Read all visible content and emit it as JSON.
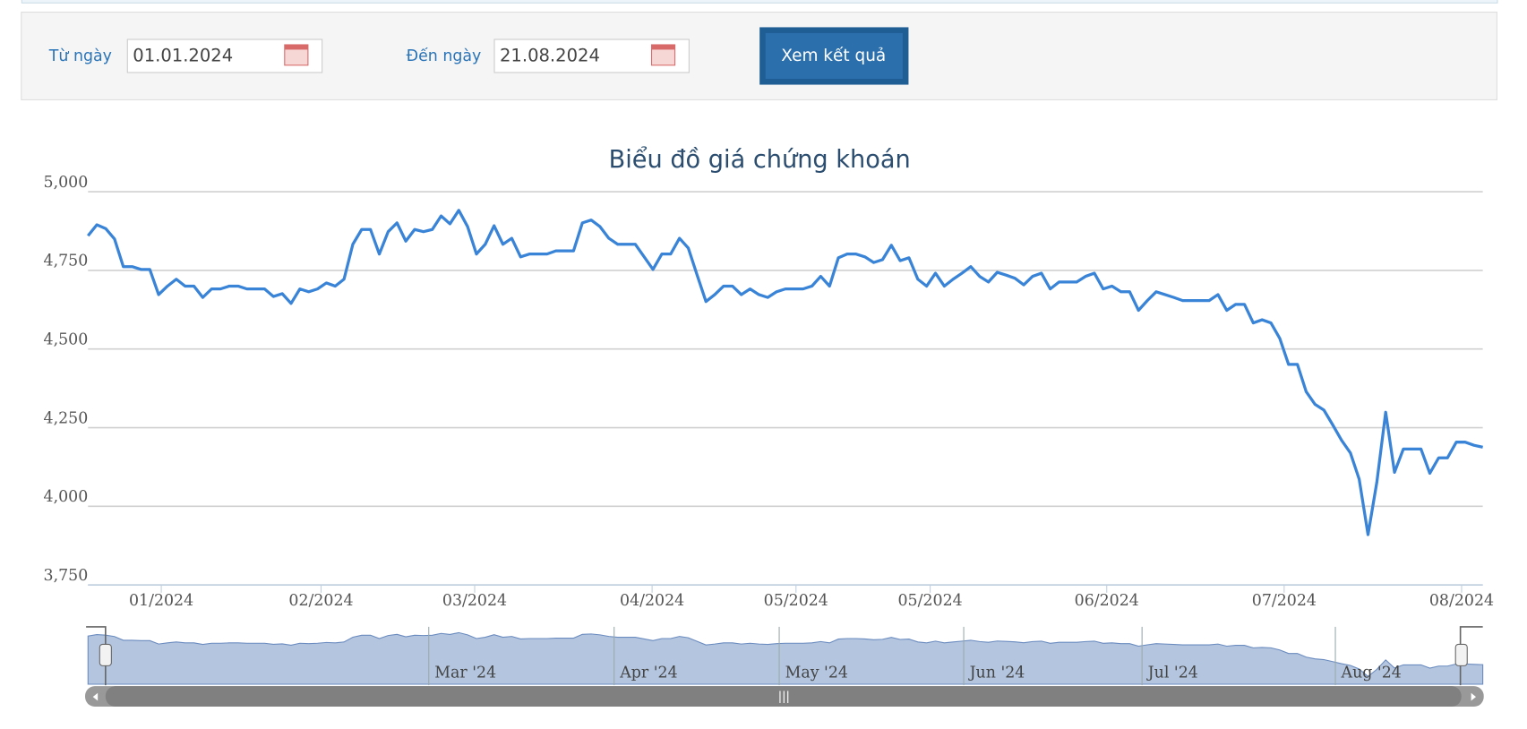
{
  "form": {
    "from_label": "Từ ngày",
    "from_value": "01.01.2024",
    "to_label": "Đến ngày",
    "to_value": "21.08.2024",
    "button": "Xem kết quả"
  },
  "chart_data": {
    "type": "line",
    "title": "Biểu đồ giá chứng khoán",
    "series": [
      {
        "color": "#3a84d8",
        "values": [
          4860,
          4895,
          4883,
          4850,
          4762,
          4762,
          4753,
          4753,
          4673,
          4700,
          4722,
          4700,
          4700,
          4664,
          4691,
          4691,
          4700,
          4700,
          4691,
          4691,
          4691,
          4667,
          4676,
          4645,
          4691,
          4682,
          4691,
          4710,
          4700,
          4722,
          4833,
          4880,
          4880,
          4802,
          4873,
          4901,
          4843,
          4880,
          4873,
          4880,
          4923,
          4898,
          4941,
          4889,
          4802,
          4833,
          4892,
          4833,
          4852,
          4793,
          4802,
          4802,
          4802,
          4812,
          4812,
          4812,
          4901,
          4910,
          4889,
          4852,
          4833,
          4833,
          4833,
          4793,
          4753,
          4802,
          4802,
          4852,
          4821,
          4735,
          4651,
          4673,
          4700,
          4700,
          4673,
          4691,
          4673,
          4664,
          4682,
          4691,
          4691,
          4691,
          4700,
          4731,
          4700,
          4790,
          4802,
          4802,
          4793,
          4775,
          4784,
          4830,
          4781,
          4790,
          4722,
          4700,
          4741,
          4700,
          4722,
          4741,
          4762,
          4731,
          4713,
          4744,
          4735,
          4725,
          4704,
          4731,
          4741,
          4691,
          4713,
          4713,
          4713,
          4731,
          4741,
          4691,
          4700,
          4682,
          4682,
          4623,
          4654,
          4682,
          4673,
          4664,
          4654,
          4654,
          4654,
          4654,
          4673,
          4623,
          4642,
          4642,
          4583,
          4593,
          4583,
          4534,
          4451,
          4451,
          4364,
          4324,
          4306,
          4259,
          4210,
          4170,
          4086,
          3910,
          4077,
          4299,
          4108,
          4182,
          4182,
          4182,
          4105,
          4154,
          4154,
          4204,
          4204,
          4194,
          4188
        ]
      }
    ],
    "xlim": [
      0,
      158
    ],
    "xticks": [
      {
        "value": 8.3,
        "label": "01/2024"
      },
      {
        "value": 26.4,
        "label": "02/2024"
      },
      {
        "value": 43.8,
        "label": "03/2024"
      },
      {
        "value": 63.9,
        "label": "04/2024"
      },
      {
        "value": 80.2,
        "label": "05/2024"
      },
      {
        "value": 95.4,
        "label": "05/2024"
      },
      {
        "value": 115.4,
        "label": "06/2024"
      },
      {
        "value": 135.5,
        "label": "07/2024"
      },
      {
        "value": 155.6,
        "label": "08/2024"
      }
    ],
    "ylim": [
      3750,
      5000
    ],
    "yticks": [
      {
        "value": 3750,
        "label": "3,750"
      },
      {
        "value": 4000,
        "label": "4,000"
      },
      {
        "value": 4250,
        "label": "4,250"
      },
      {
        "value": 4500,
        "label": "4,500"
      },
      {
        "value": 4750,
        "label": "4,750"
      },
      {
        "value": 5000,
        "label": "5,000"
      }
    ],
    "grid": true,
    "navigator": {
      "xticks": [
        {
          "value": 38.6,
          "label": "Mar '24"
        },
        {
          "value": 59.6,
          "label": "Apr '24"
        },
        {
          "value": 78.3,
          "label": "May '24"
        },
        {
          "value": 99.2,
          "label": "Jun '24"
        },
        {
          "value": 119.4,
          "label": "Jul '24"
        },
        {
          "value": 141.3,
          "label": "Aug '24"
        }
      ]
    }
  }
}
